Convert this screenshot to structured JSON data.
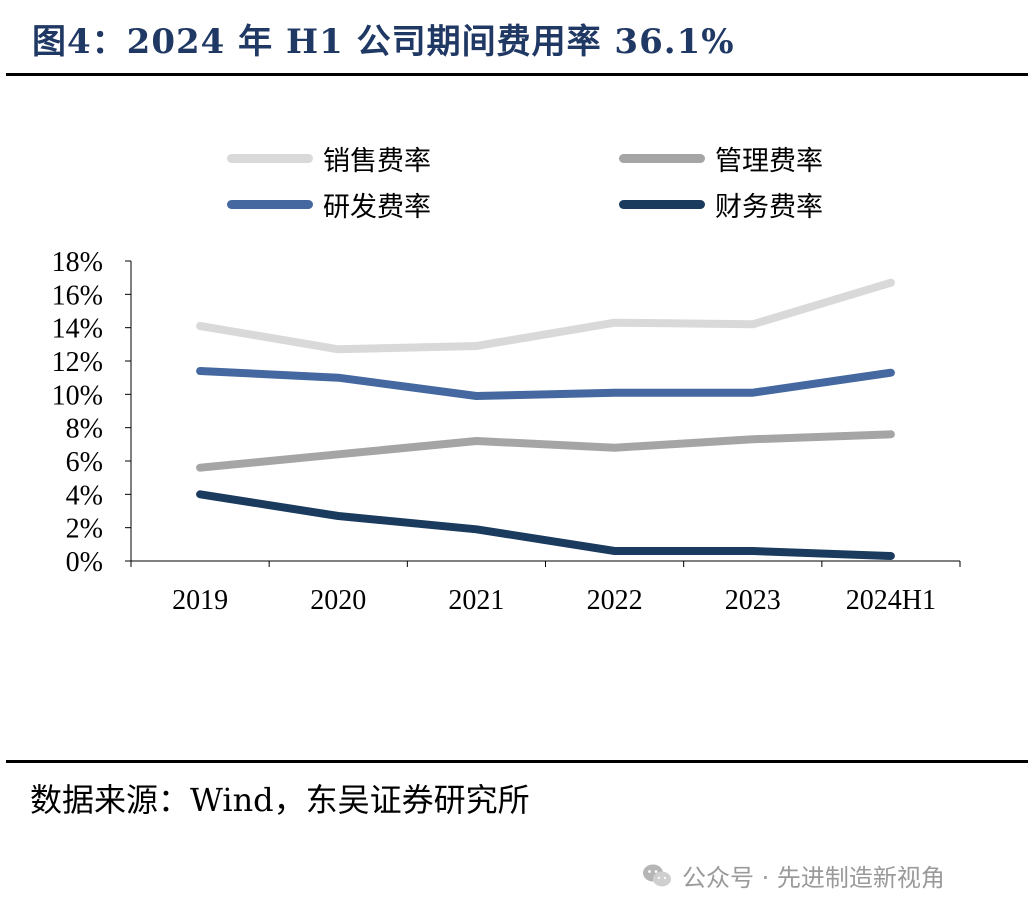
{
  "figure": {
    "title": "图4：2024 年 H1 公司期间费用率 36.1%",
    "source": "数据来源：Wind，东吴证券研究所",
    "watermark": "公众号 · 先进制造新视角",
    "watermark_icon": "wechat-icon"
  },
  "chart_data": {
    "type": "line",
    "title": "",
    "xlabel": "",
    "ylabel": "",
    "categories": [
      "2019",
      "2020",
      "2021",
      "2022",
      "2023",
      "2024H1"
    ],
    "ylim": [
      0,
      18
    ],
    "yticks": [
      "0%",
      "2%",
      "4%",
      "6%",
      "8%",
      "10%",
      "12%",
      "14%",
      "16%",
      "18%"
    ],
    "grid": false,
    "legend_position": "top",
    "series": [
      {
        "name": "销售费率",
        "color": "#d9d9d9",
        "values": [
          14.1,
          12.7,
          12.9,
          14.3,
          14.2,
          16.7
        ]
      },
      {
        "name": "管理费率",
        "color": "#a5a5a5",
        "values": [
          5.6,
          6.4,
          7.2,
          6.8,
          7.3,
          7.6
        ]
      },
      {
        "name": "研发费率",
        "color": "#44689f",
        "values": [
          11.4,
          11.0,
          9.9,
          10.1,
          10.1,
          11.3
        ]
      },
      {
        "name": "财务费率",
        "color": "#1a3a5e",
        "values": [
          4.0,
          2.7,
          1.9,
          0.6,
          0.6,
          0.3
        ]
      }
    ]
  }
}
